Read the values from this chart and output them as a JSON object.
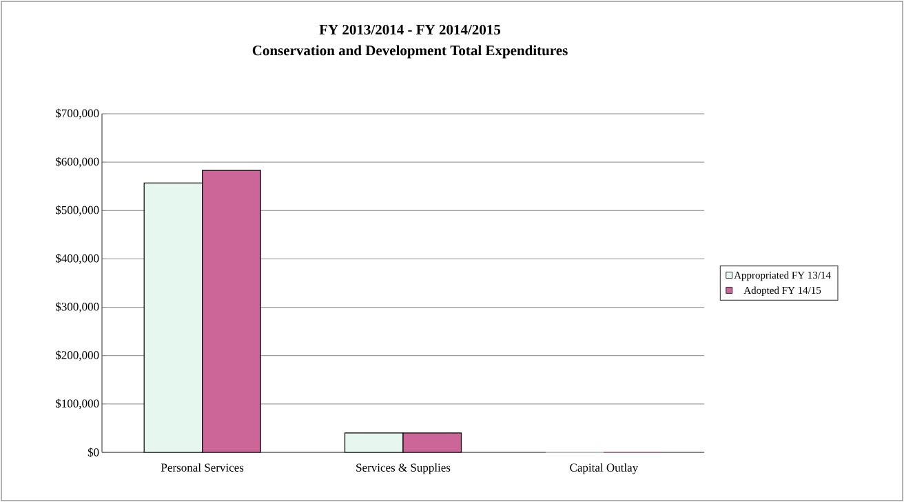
{
  "chart_data": {
    "type": "bar",
    "title": "FY 2013/2014 - FY 2014/2015",
    "subtitle": "Conservation and Development Total Expenditures",
    "categories": [
      "Personal Services",
      "Services & Supplies",
      "Capital Outlay"
    ],
    "series": [
      {
        "name": "Appropriated FY 13/14",
        "color": "#e6f7ef",
        "values": [
          557000,
          40000,
          0
        ]
      },
      {
        "name": "Adopted FY 14/15",
        "color": "#cc6699",
        "values": [
          583000,
          40000,
          0
        ]
      }
    ],
    "ylim": [
      0,
      700000
    ],
    "yticks": [
      {
        "value": 0,
        "label": "$0"
      },
      {
        "value": 100000,
        "label": "$100,000"
      },
      {
        "value": 200000,
        "label": "$200,000"
      },
      {
        "value": 300000,
        "label": "$300,000"
      },
      {
        "value": 400000,
        "label": "$400,000"
      },
      {
        "value": 500000,
        "label": "$500,000"
      },
      {
        "value": 600000,
        "label": "$600,000"
      },
      {
        "value": 700000,
        "label": "$700,000"
      }
    ],
    "grid": "y",
    "legend": "right"
  }
}
